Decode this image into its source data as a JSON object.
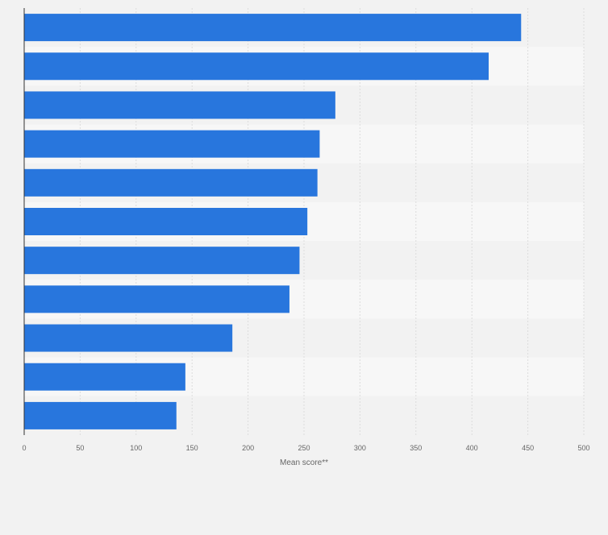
{
  "chart_data": {
    "type": "bar",
    "orientation": "horizontal",
    "categories": [
      "",
      "",
      "",
      "",
      "",
      "",
      "",
      "",
      "",
      "",
      ""
    ],
    "values": [
      444,
      415,
      278,
      264,
      262,
      253,
      246,
      237,
      186,
      144,
      136
    ],
    "xlabel": "Mean score**",
    "ylabel": "",
    "xlim": [
      0,
      500
    ],
    "ticks": [
      0,
      50,
      100,
      150,
      200,
      250,
      300,
      350,
      400,
      450,
      500
    ],
    "grid": true,
    "legend": "none",
    "colors": {
      "bar": "#2876dd",
      "background": "#f2f2f2",
      "band_light": "#f7f7f7",
      "band_dark": "#f2f2f2",
      "grid": "#dcdcdc",
      "axis": "#333333",
      "text": "#666666"
    }
  }
}
